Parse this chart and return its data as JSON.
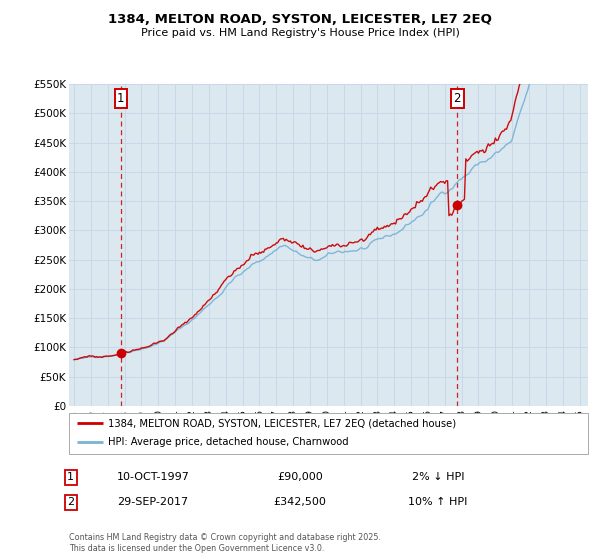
{
  "title": "1384, MELTON ROAD, SYSTON, LEICESTER, LE7 2EQ",
  "subtitle": "Price paid vs. HM Land Registry's House Price Index (HPI)",
  "ylim": [
    0,
    550000
  ],
  "yticks": [
    0,
    50000,
    100000,
    150000,
    200000,
    250000,
    300000,
    350000,
    400000,
    450000,
    500000,
    550000
  ],
  "ytick_labels": [
    "£0",
    "£50K",
    "£100K",
    "£150K",
    "£200K",
    "£250K",
    "£300K",
    "£350K",
    "£400K",
    "£450K",
    "£500K",
    "£550K"
  ],
  "hpi_color": "#7ab3d4",
  "price_color": "#cc0000",
  "vline_color": "#cc0000",
  "grid_color": "#c8d8e8",
  "bg_color": "#dce8f0",
  "marker1_x": 1997.78,
  "marker2_x": 2017.74,
  "marker1_y": 90000,
  "marker2_y": 342500,
  "legend_label1": "1384, MELTON ROAD, SYSTON, LEICESTER, LE7 2EQ (detached house)",
  "legend_label2": "HPI: Average price, detached house, Charnwood",
  "table_row1": [
    "1",
    "10-OCT-1997",
    "£90,000",
    "2% ↓ HPI"
  ],
  "table_row2": [
    "2",
    "29-SEP-2017",
    "£342,500",
    "10% ↑ HPI"
  ],
  "copyright_text": "Contains HM Land Registry data © Crown copyright and database right 2025.\nThis data is licensed under the Open Government Licence v3.0.",
  "xlim_start": 1994.7,
  "xlim_end": 2025.5,
  "n_months": 373
}
